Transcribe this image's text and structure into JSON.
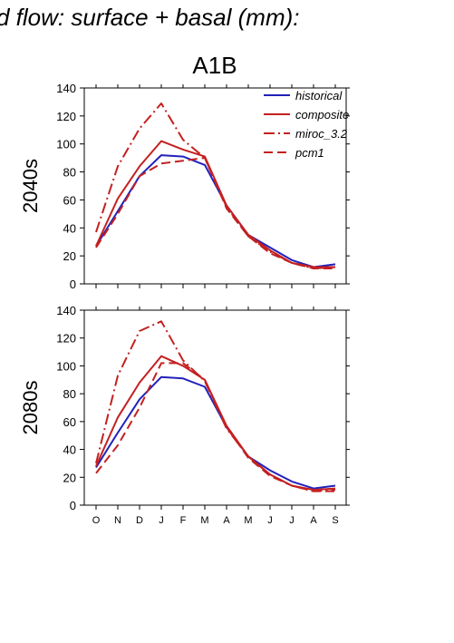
{
  "page": {
    "title": "d flow: surface + basal (mm):",
    "scenario": "A1B"
  },
  "colors": {
    "historical": "#2222bb",
    "composite": "#c42020",
    "miroc_3.2": "#c42020",
    "pcm1": "#c42020"
  },
  "chart_data": [
    {
      "type": "line",
      "title": "2040s",
      "categories": [
        "O",
        "N",
        "D",
        "J",
        "F",
        "M",
        "A",
        "M",
        "J",
        "J",
        "A",
        "S"
      ],
      "ylim": [
        0,
        140
      ],
      "yticks": [
        0,
        20,
        40,
        60,
        80,
        100,
        120,
        140
      ],
      "legend": "top-right",
      "series": [
        {
          "name": "historical",
          "style": "solid",
          "values": [
            27,
            52,
            77,
            92,
            91,
            85,
            56,
            35,
            26,
            17,
            12,
            14
          ]
        },
        {
          "name": "composite",
          "style": "solid",
          "values": [
            27,
            61,
            84,
            102,
            96,
            91,
            56,
            35,
            24,
            15,
            12,
            12
          ]
        },
        {
          "name": "miroc_3.2",
          "style": "dashdot",
          "values": [
            37,
            84,
            111,
            129,
            103,
            90,
            55,
            34,
            23,
            15,
            11,
            12
          ]
        },
        {
          "name": "pcm1",
          "style": "dashed",
          "values": [
            26,
            50,
            77,
            86,
            88,
            90,
            54,
            34,
            22,
            15,
            11,
            11
          ]
        }
      ]
    },
    {
      "type": "line",
      "title": "2080s",
      "categories": [
        "O",
        "N",
        "D",
        "J",
        "F",
        "M",
        "A",
        "M",
        "J",
        "J",
        "A",
        "S"
      ],
      "ylim": [
        0,
        140
      ],
      "yticks": [
        0,
        20,
        40,
        60,
        80,
        100,
        120,
        140
      ],
      "series": [
        {
          "name": "historical",
          "style": "solid",
          "values": [
            27,
            52,
            76,
            92,
            91,
            85,
            56,
            35,
            25,
            17,
            12,
            14
          ]
        },
        {
          "name": "composite",
          "style": "solid",
          "values": [
            28,
            63,
            88,
            107,
            100,
            90,
            57,
            35,
            22,
            14,
            11,
            12
          ]
        },
        {
          "name": "miroc_3.2",
          "style": "dashdot",
          "values": [
            30,
            93,
            125,
            132,
            104,
            89,
            55,
            35,
            22,
            14,
            10,
            11
          ]
        },
        {
          "name": "pcm1",
          "style": "dashed",
          "values": [
            23,
            43,
            70,
            102,
            102,
            90,
            56,
            34,
            21,
            14,
            10,
            10
          ]
        }
      ]
    }
  ]
}
